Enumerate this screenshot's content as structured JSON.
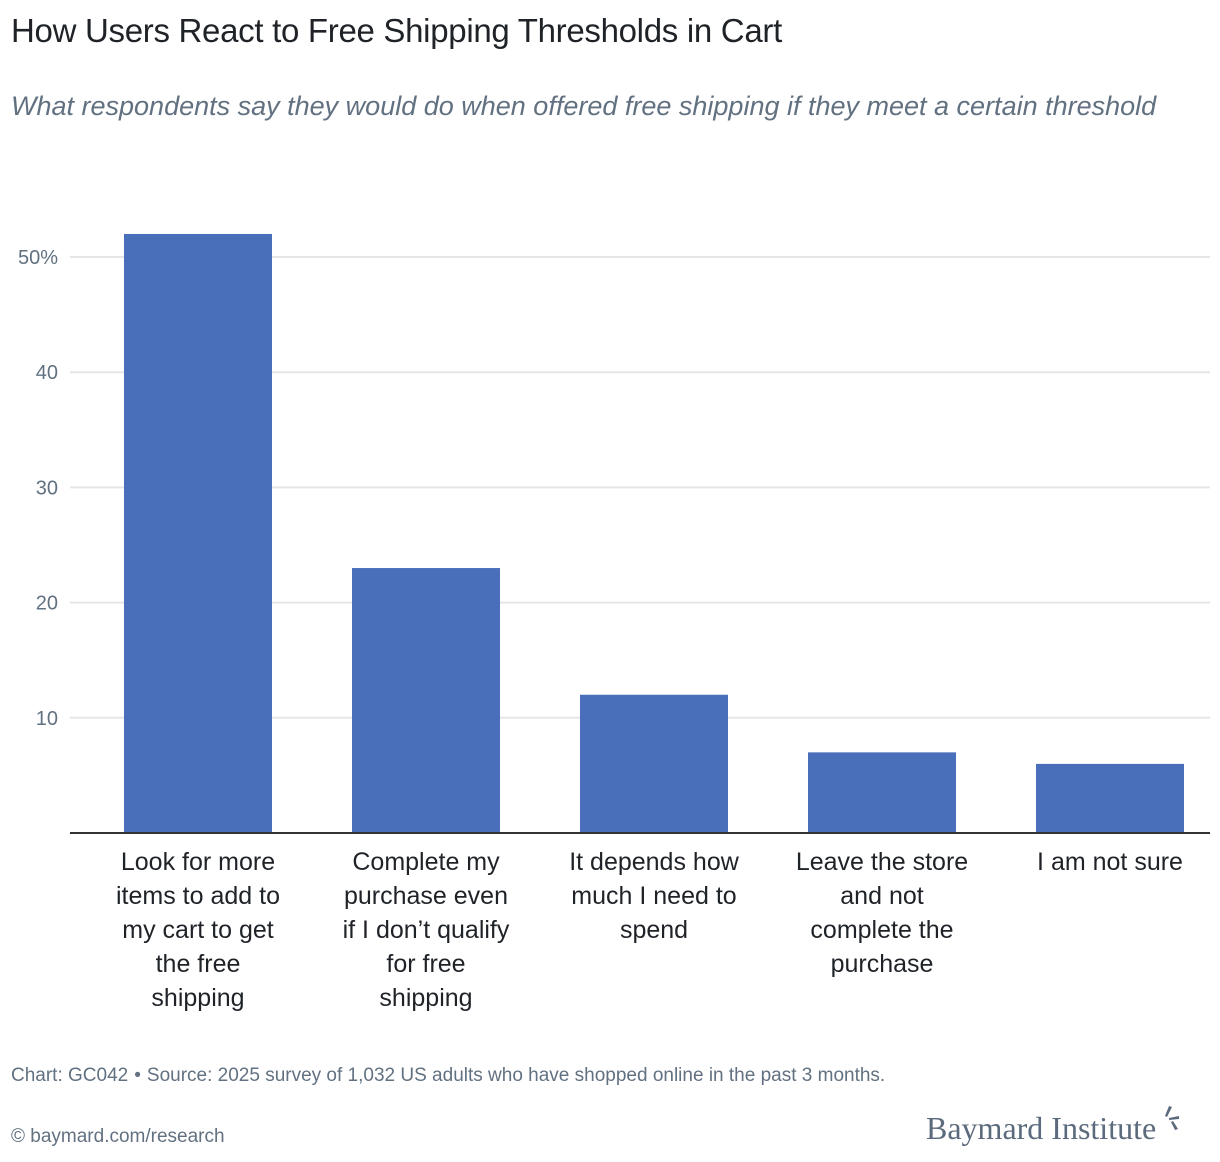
{
  "header": {
    "title": "How Users React to Free Shipping Thresholds in Cart",
    "subtitle": "What respondents say they would do when offered free shipping if they meet a certain threshold"
  },
  "chart_data": {
    "type": "bar",
    "title": "How Users React to Free Shipping Thresholds in Cart",
    "subtitle": "What respondents say they would do when offered free shipping if they meet a certain threshold",
    "xlabel": "",
    "ylabel": "",
    "categories": [
      "Look for more items to add to my cart to get the free shipping",
      "Complete my purchase even if I don’t qualify for free shipping",
      "It depends how much I need to spend",
      "Leave the store and not complete the purchase",
      "I am not sure"
    ],
    "category_lines": [
      [
        "Look for more",
        "items to add to",
        "my cart to get",
        "the free",
        "shipping"
      ],
      [
        "Complete my",
        "purchase even",
        "if I don’t qualify",
        "for free",
        "shipping"
      ],
      [
        "It depends how",
        "much I need to",
        "spend"
      ],
      [
        "Leave the store",
        "and not",
        "complete the",
        "purchase"
      ],
      [
        "I am not sure"
      ]
    ],
    "values": [
      52,
      23,
      12,
      7,
      6
    ],
    "unit": "%",
    "ylim": [
      0,
      52
    ],
    "yticks": [
      10,
      20,
      30,
      40,
      50
    ],
    "ytick_labels": [
      "10",
      "20",
      "30",
      "40",
      "50%"
    ],
    "grid": true,
    "legend": "none",
    "bar_color": "#4a6fba"
  },
  "footer": {
    "chart_id": "Chart: GC042",
    "separator": "•",
    "source": "Source: 2025 survey of 1,032 US adults who have shopped online in the past 3 months.",
    "copyright": "© baymard.com/research",
    "brand": "Baymard Institute"
  }
}
